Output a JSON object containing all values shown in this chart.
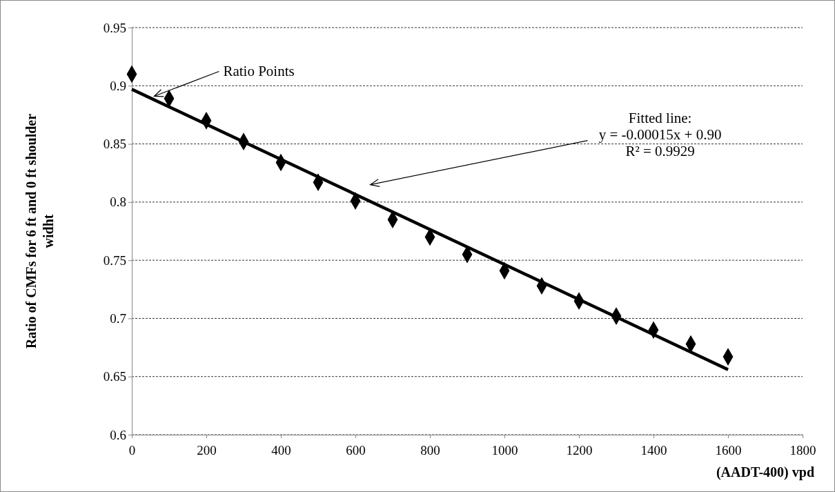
{
  "chart_data": {
    "type": "scatter",
    "xlabel": "(AADT-400) vpd",
    "ylabel": "Ratio of CMFs for 6 ft and 0 ft shoulder widht",
    "xlim": [
      0,
      1800
    ],
    "xticks": [
      0,
      200,
      400,
      600,
      800,
      1000,
      1200,
      1400,
      1600,
      1800
    ],
    "ylim": [
      0.6,
      0.95
    ],
    "yticks": [
      0.6,
      0.65,
      0.7,
      0.75,
      0.8,
      0.85,
      0.9,
      0.95
    ],
    "grid": "y",
    "series": [
      {
        "color": "#000000",
        "marker": "diamond",
        "x": [
          0,
          100,
          200,
          300,
          400,
          500,
          600,
          700,
          800,
          900,
          1000,
          1100,
          1200,
          1300,
          1400,
          1500,
          1600
        ],
        "values": [
          0.91,
          0.889,
          0.87,
          0.852,
          0.834,
          0.817,
          0.801,
          0.785,
          0.77,
          0.755,
          0.741,
          0.728,
          0.715,
          0.702,
          0.69,
          0.678,
          0.667
        ]
      },
      {
        "type": "line",
        "color": "#000000",
        "line_style": "solid",
        "x": [
          0,
          1600
        ],
        "values": [
          0.897,
          0.656
        ]
      }
    ],
    "annotations": [
      {
        "text": "Ratio Points",
        "x": 60,
        "y": 0.891
      },
      "Fitted line:\ny = -0.00015x + 0.90\nR² = 0.9929"
    ]
  }
}
